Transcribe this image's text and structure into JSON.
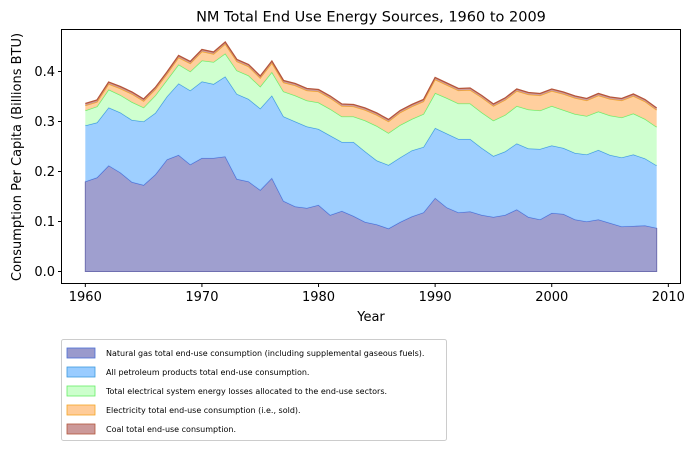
{
  "chart_data": {
    "type": "area",
    "stacked": true,
    "title": "NM Total End Use Energy Sources, 1960 to 2009",
    "xlabel": "Year",
    "ylabel": "Consumption Per Capita (Billions BTU)",
    "xlim": [
      1958,
      2011
    ],
    "ylim": [
      -0.023,
      0.483
    ],
    "xticks": [
      1960,
      1970,
      1980,
      1990,
      2000,
      2010
    ],
    "xtick_labels": [
      "1960",
      "1970",
      "1980",
      "1990",
      "2000",
      "2010"
    ],
    "yticks": [
      0.0,
      0.1,
      0.2,
      0.3,
      0.4
    ],
    "ytick_labels": [
      "0.0",
      "0.1",
      "0.2",
      "0.3",
      "0.4"
    ],
    "grid": false,
    "legend_position": "below-left",
    "x": [
      1960,
      1961,
      1962,
      1963,
      1964,
      1965,
      1966,
      1967,
      1968,
      1969,
      1970,
      1971,
      1972,
      1973,
      1974,
      1975,
      1976,
      1977,
      1978,
      1979,
      1980,
      1981,
      1982,
      1983,
      1984,
      1985,
      1986,
      1987,
      1988,
      1989,
      1990,
      1991,
      1992,
      1993,
      1994,
      1995,
      1996,
      1997,
      1998,
      1999,
      2000,
      2001,
      2002,
      2003,
      2004,
      2005,
      2006,
      2007,
      2008,
      2009
    ],
    "series": [
      {
        "name": "Natural gas total end-use consumption (including supplemental gaseous fuels).",
        "fill": "#9a9acc",
        "stroke": "#4b6fd6",
        "cumulative": [
          0.18,
          0.188,
          0.212,
          0.198,
          0.179,
          0.173,
          0.194,
          0.224,
          0.233,
          0.214,
          0.227,
          0.227,
          0.23,
          0.185,
          0.18,
          0.163,
          0.187,
          0.141,
          0.13,
          0.127,
          0.133,
          0.113,
          0.121,
          0.111,
          0.099,
          0.094,
          0.086,
          0.099,
          0.11,
          0.118,
          0.147,
          0.128,
          0.118,
          0.12,
          0.113,
          0.109,
          0.113,
          0.124,
          0.109,
          0.104,
          0.117,
          0.115,
          0.104,
          0.1,
          0.104,
          0.097,
          0.09,
          0.091,
          0.092,
          0.087
        ]
      },
      {
        "name": "All petroleum products total end-use consumption.",
        "fill": "#99ccff",
        "stroke": "#3d9be0",
        "cumulative": [
          0.292,
          0.298,
          0.328,
          0.318,
          0.303,
          0.3,
          0.317,
          0.35,
          0.376,
          0.362,
          0.38,
          0.375,
          0.39,
          0.355,
          0.345,
          0.326,
          0.352,
          0.31,
          0.3,
          0.29,
          0.285,
          0.272,
          0.259,
          0.259,
          0.24,
          0.222,
          0.213,
          0.228,
          0.242,
          0.249,
          0.287,
          0.276,
          0.265,
          0.265,
          0.247,
          0.231,
          0.24,
          0.256,
          0.246,
          0.245,
          0.252,
          0.247,
          0.237,
          0.234,
          0.243,
          0.233,
          0.228,
          0.234,
          0.226,
          0.212
        ]
      },
      {
        "name": "Total electrical system energy losses allocated to the end-use sectors.",
        "fill": "#ccffcc",
        "stroke": "#66ee66",
        "cumulative": [
          0.322,
          0.33,
          0.364,
          0.353,
          0.339,
          0.328,
          0.352,
          0.383,
          0.414,
          0.4,
          0.422,
          0.419,
          0.436,
          0.402,
          0.392,
          0.37,
          0.399,
          0.36,
          0.352,
          0.342,
          0.338,
          0.325,
          0.31,
          0.31,
          0.302,
          0.291,
          0.277,
          0.293,
          0.305,
          0.315,
          0.357,
          0.347,
          0.336,
          0.336,
          0.318,
          0.302,
          0.313,
          0.331,
          0.324,
          0.322,
          0.331,
          0.323,
          0.315,
          0.311,
          0.32,
          0.312,
          0.308,
          0.316,
          0.305,
          0.289
        ]
      },
      {
        "name": "Electricity total end-use consumption (i.e., sold).",
        "fill": "#ffcc99",
        "stroke": "#f5a623",
        "cumulative": [
          0.332,
          0.339,
          0.375,
          0.366,
          0.355,
          0.341,
          0.364,
          0.395,
          0.428,
          0.416,
          0.44,
          0.435,
          0.455,
          0.42,
          0.41,
          0.387,
          0.417,
          0.378,
          0.372,
          0.362,
          0.36,
          0.347,
          0.331,
          0.33,
          0.323,
          0.313,
          0.3,
          0.318,
          0.33,
          0.34,
          0.384,
          0.373,
          0.362,
          0.363,
          0.348,
          0.331,
          0.343,
          0.361,
          0.354,
          0.352,
          0.361,
          0.355,
          0.347,
          0.342,
          0.352,
          0.345,
          0.342,
          0.351,
          0.34,
          0.323
        ]
      },
      {
        "name": "Coal total end-use consumption.",
        "fill": "#cc9999",
        "stroke": "#b5553a",
        "cumulative": [
          0.336,
          0.343,
          0.379,
          0.37,
          0.359,
          0.345,
          0.368,
          0.399,
          0.432,
          0.42,
          0.444,
          0.439,
          0.459,
          0.424,
          0.414,
          0.391,
          0.421,
          0.382,
          0.376,
          0.366,
          0.364,
          0.351,
          0.335,
          0.334,
          0.327,
          0.317,
          0.304,
          0.322,
          0.334,
          0.344,
          0.388,
          0.377,
          0.366,
          0.367,
          0.352,
          0.335,
          0.347,
          0.365,
          0.358,
          0.356,
          0.365,
          0.359,
          0.351,
          0.346,
          0.356,
          0.349,
          0.346,
          0.355,
          0.344,
          0.327
        ]
      }
    ]
  }
}
